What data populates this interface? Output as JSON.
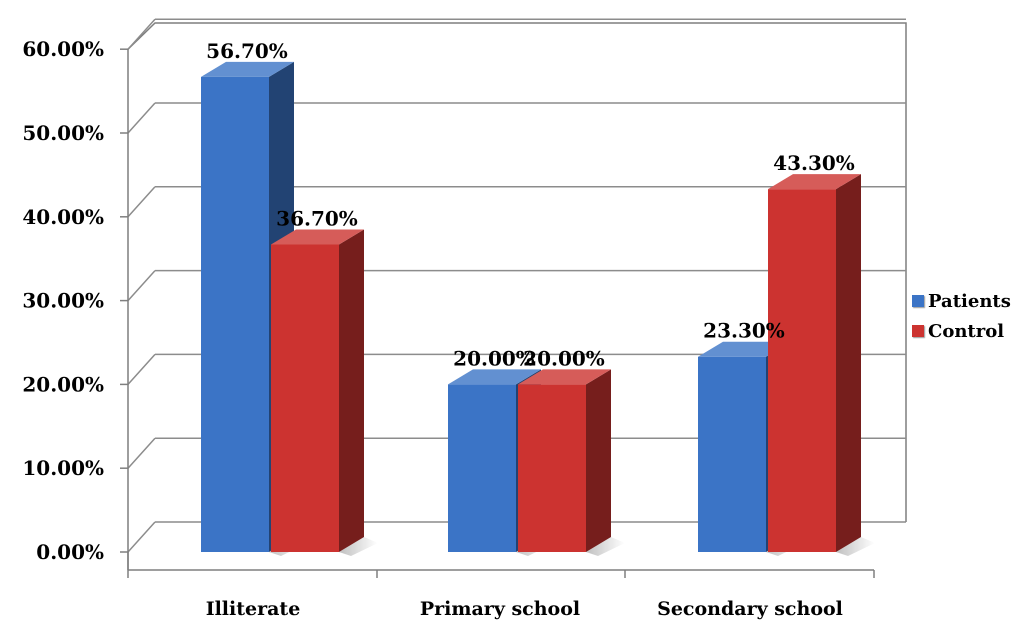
{
  "chart_data": {
    "type": "bar",
    "title": "",
    "xlabel": "",
    "ylabel": "",
    "categories": [
      "Illiterate",
      "Primary school",
      "Secondary school"
    ],
    "series": [
      {
        "name": "Patients",
        "color": "#3b74c6",
        "values": [
          56.7,
          20.0,
          23.3
        ],
        "labels": [
          "56.70%",
          "20.00%",
          "23.30%"
        ]
      },
      {
        "name": "Control",
        "color": "#cc3330",
        "values": [
          36.7,
          20.0,
          43.3
        ],
        "labels": [
          "36.70%",
          "20.00%",
          "43.30%"
        ]
      }
    ],
    "yticks": [
      "0.00%",
      "10.00%",
      "20.00%",
      "30.00%",
      "40.00%",
      "50.00%",
      "60.00%"
    ],
    "ylim": [
      0,
      60
    ],
    "grid": true,
    "legend_position": "right",
    "style": "3d-clustered-column"
  }
}
